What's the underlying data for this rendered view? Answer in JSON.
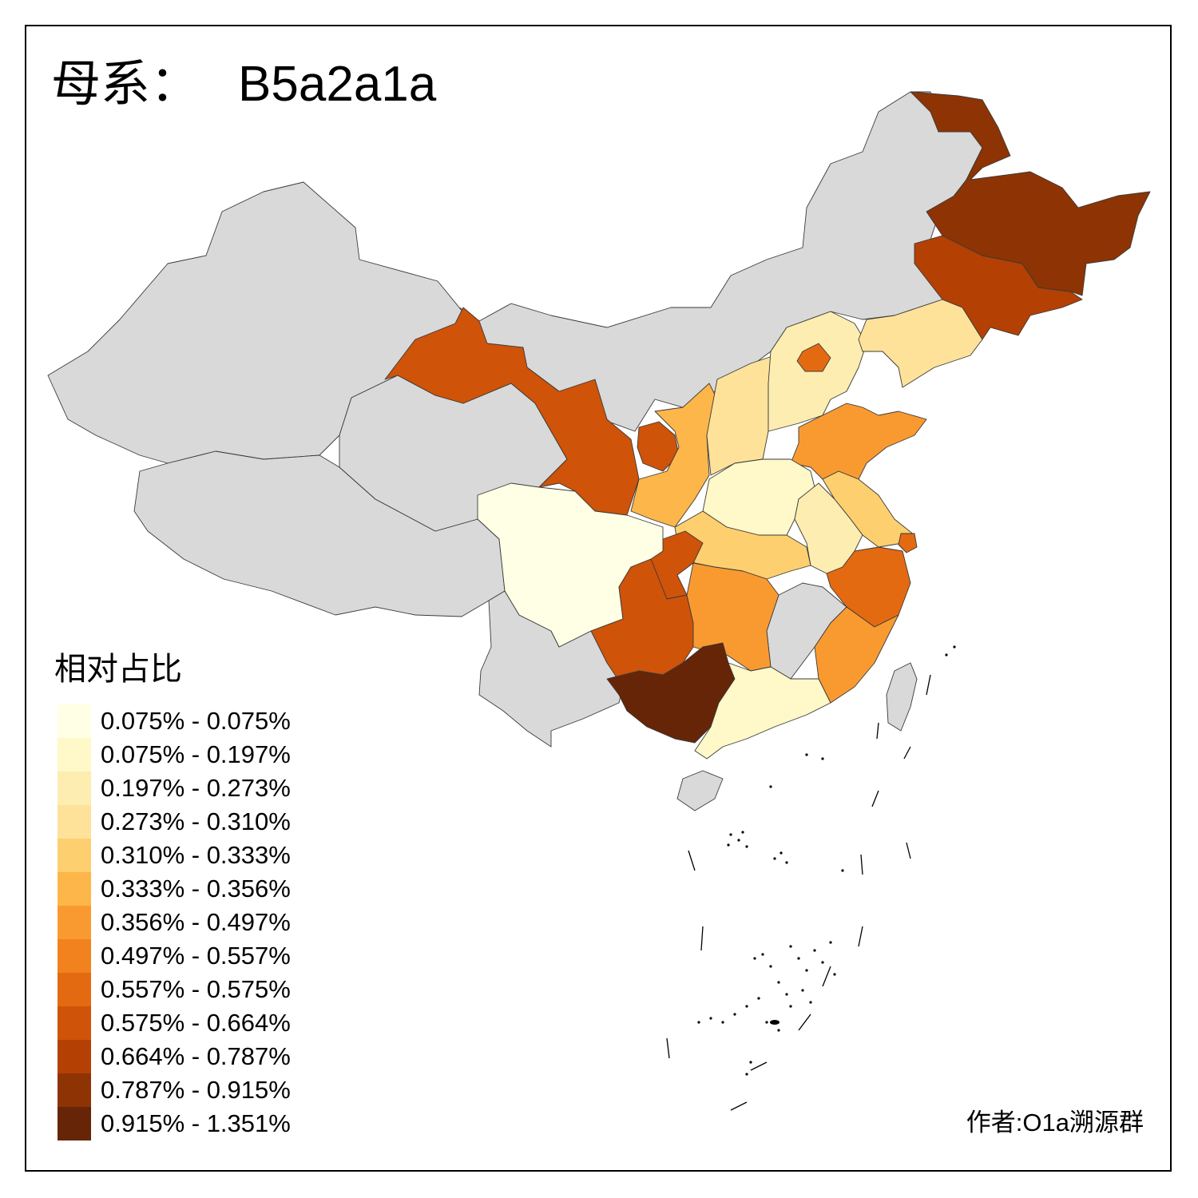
{
  "title": {
    "prefix": "母系：",
    "haplogroup": "B5a2a1a"
  },
  "legend": {
    "title": "相对占比",
    "items": [
      {
        "label": "0.075% - 0.075%",
        "color": "#FFFFE5"
      },
      {
        "label": "0.075% - 0.197%",
        "color": "#FFF8C9"
      },
      {
        "label": "0.197% - 0.273%",
        "color": "#FEEDB0"
      },
      {
        "label": "0.273% - 0.310%",
        "color": "#FEE29A"
      },
      {
        "label": "0.310% - 0.333%",
        "color": "#FECF6F"
      },
      {
        "label": "0.333% - 0.356%",
        "color": "#FDB649"
      },
      {
        "label": "0.356% - 0.497%",
        "color": "#F99A31"
      },
      {
        "label": "0.497% - 0.557%",
        "color": "#F1821D"
      },
      {
        "label": "0.557% - 0.575%",
        "color": "#E46A12"
      },
      {
        "label": "0.575% - 0.664%",
        "color": "#CF5308"
      },
      {
        "label": "0.664% - 0.787%",
        "color": "#B44003"
      },
      {
        "label": "0.787% - 0.915%",
        "color": "#8E3304"
      },
      {
        "label": "0.915% - 1.351%",
        "color": "#662506"
      }
    ]
  },
  "no_data_color": "#D9D9D9",
  "author": "作者:O1a溯源群"
}
